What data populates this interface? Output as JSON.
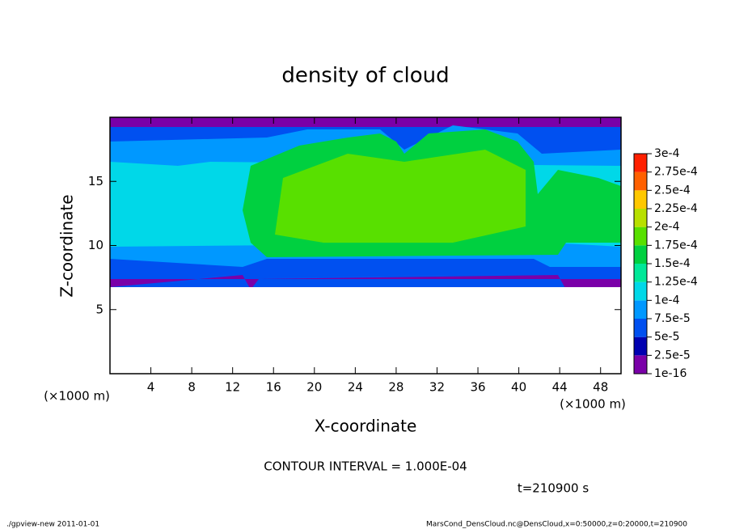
{
  "chart_data": {
    "type": "contour",
    "title": "density of cloud",
    "x_label": "X-coordinate",
    "y_label": "Z-coordinate",
    "x_unit_left": "(×1000 m)",
    "x_unit_right": "(×1000 m)",
    "contour_interval": "CONTOUR INTERVAL = 1.000E-04",
    "time_label": "t=210900 s",
    "footer_left": "./gpview-new  2011-01-01",
    "footer_right": "MarsCond_DensCloud.nc@DensCloud,x=0:50000,z=0:20000,t=210900",
    "xlim": [
      0,
      50
    ],
    "xticks": [
      4,
      8,
      12,
      16,
      20,
      24,
      28,
      32,
      36,
      40,
      44,
      48
    ],
    "ylim": [
      0,
      20
    ],
    "yticks": [
      5,
      10,
      15
    ],
    "colorbar": {
      "levels": [
        {
          "value": 1e-16,
          "label": "1e-16"
        },
        {
          "value": 2.5e-05,
          "label": "2.5e-5"
        },
        {
          "value": 5e-05,
          "label": "5e-5"
        },
        {
          "value": 7.5e-05,
          "label": "7.5e-5"
        },
        {
          "value": 0.0001,
          "label": "1e-4"
        },
        {
          "value": 0.000125,
          "label": "1.25e-4"
        },
        {
          "value": 0.00015,
          "label": "1.5e-4"
        },
        {
          "value": 0.000175,
          "label": "1.75e-4"
        },
        {
          "value": 0.0002,
          "label": "2e-4"
        },
        {
          "value": 0.000225,
          "label": "2.25e-4"
        },
        {
          "value": 0.00025,
          "label": "2.5e-4"
        },
        {
          "value": 0.000275,
          "label": "2.75e-4"
        },
        {
          "value": 0.0003,
          "label": "3e-4"
        }
      ],
      "colors": [
        "#7a00a8",
        "#0000b0",
        "#0050f0",
        "#0098ff",
        "#00d8e8",
        "#00e898",
        "#00d040",
        "#58e000",
        "#b8e000",
        "#ffc800",
        "#ff6000",
        "#ff2000"
      ]
    }
  }
}
